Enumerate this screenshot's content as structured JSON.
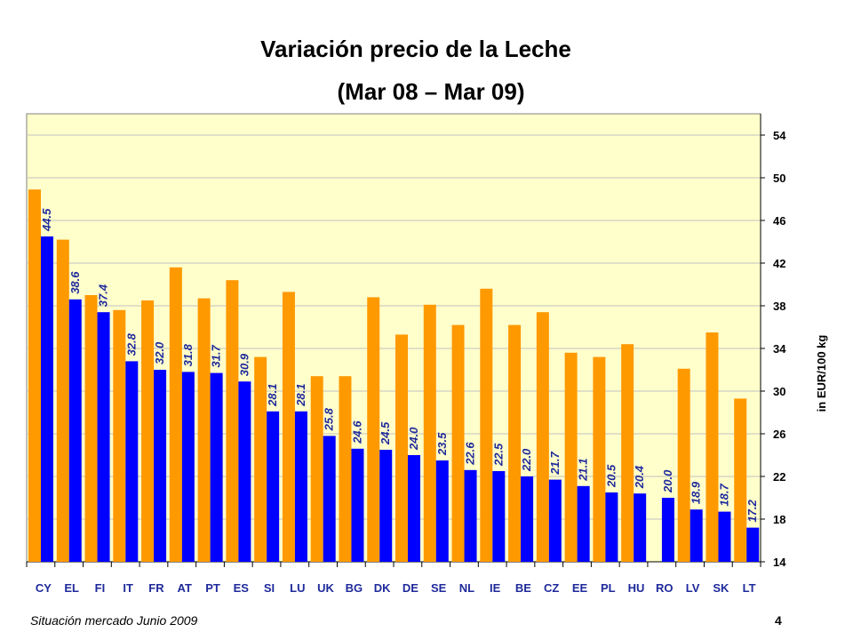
{
  "header": {
    "title": "Variación precio de la Leche",
    "subtitle": "(Mar 08 – Mar 09)"
  },
  "footer": {
    "text": "Situación mercado Junio 2009",
    "page_number": "4"
  },
  "colors": {
    "plot_background": "#ffffcc",
    "series_mar08": "#ff9900",
    "series_mar09": "#0000ff",
    "value_label": "#1f2a9b",
    "gridline": "#c0c0c0"
  },
  "chart_data": {
    "type": "bar",
    "title": "Variación precio de la Leche",
    "subtitle": "(Mar 08 – Mar 09)",
    "xlabel": "",
    "ylabel": "in EUR/100 kg",
    "ylim": [
      14,
      56
    ],
    "yticks": [
      14,
      18,
      22,
      26,
      30,
      34,
      38,
      42,
      46,
      50,
      54
    ],
    "y_axis_position": "right",
    "grid": true,
    "legend": "none",
    "categories": [
      "CY",
      "EL",
      "FI",
      "IT",
      "FR",
      "AT",
      "PT",
      "ES",
      "SI",
      "LU",
      "UK",
      "BG",
      "DK",
      "DE",
      "SE",
      "NL",
      "IE",
      "BE",
      "CZ",
      "EE",
      "PL",
      "HU",
      "RO",
      "LV",
      "SK",
      "LT"
    ],
    "series": [
      {
        "color": "#ff9900",
        "labeled": false,
        "values": [
          48.9,
          44.2,
          39.0,
          37.6,
          38.5,
          41.6,
          38.7,
          40.4,
          33.2,
          39.3,
          31.4,
          31.4,
          38.8,
          35.3,
          38.1,
          36.2,
          39.6,
          36.2,
          37.4,
          33.6,
          33.2,
          34.4,
          null,
          32.1,
          35.5,
          29.3
        ]
      },
      {
        "color": "#0000ff",
        "labeled": true,
        "values": [
          44.5,
          38.6,
          37.4,
          32.8,
          32.0,
          31.8,
          31.7,
          30.9,
          28.1,
          28.1,
          25.8,
          24.6,
          24.5,
          24.0,
          23.5,
          22.6,
          22.5,
          22.0,
          21.7,
          21.1,
          20.5,
          20.4,
          20.0,
          18.9,
          18.7,
          17.2
        ]
      }
    ]
  }
}
